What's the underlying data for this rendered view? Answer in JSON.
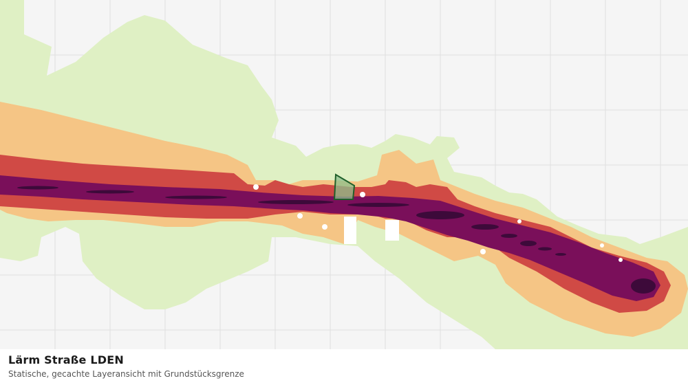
{
  "layer": {
    "title": "Lärm Straße LDEN",
    "subtitle": "Statische, gecachte Layeransicht mit Grundstücksgrenze"
  },
  "colors": {
    "background": "#f5f5f5",
    "grid": "#e0e0e0",
    "noise_band_1": "#dff0c4",
    "noise_band_2": "#f5c585",
    "noise_band_3": "#d04a45",
    "noise_band_4": "#7a0f5a",
    "noise_band_5": "#3d0a3a",
    "parcel_fill": "#8cbf8c",
    "parcel_stroke": "#1f5f2a"
  }
}
